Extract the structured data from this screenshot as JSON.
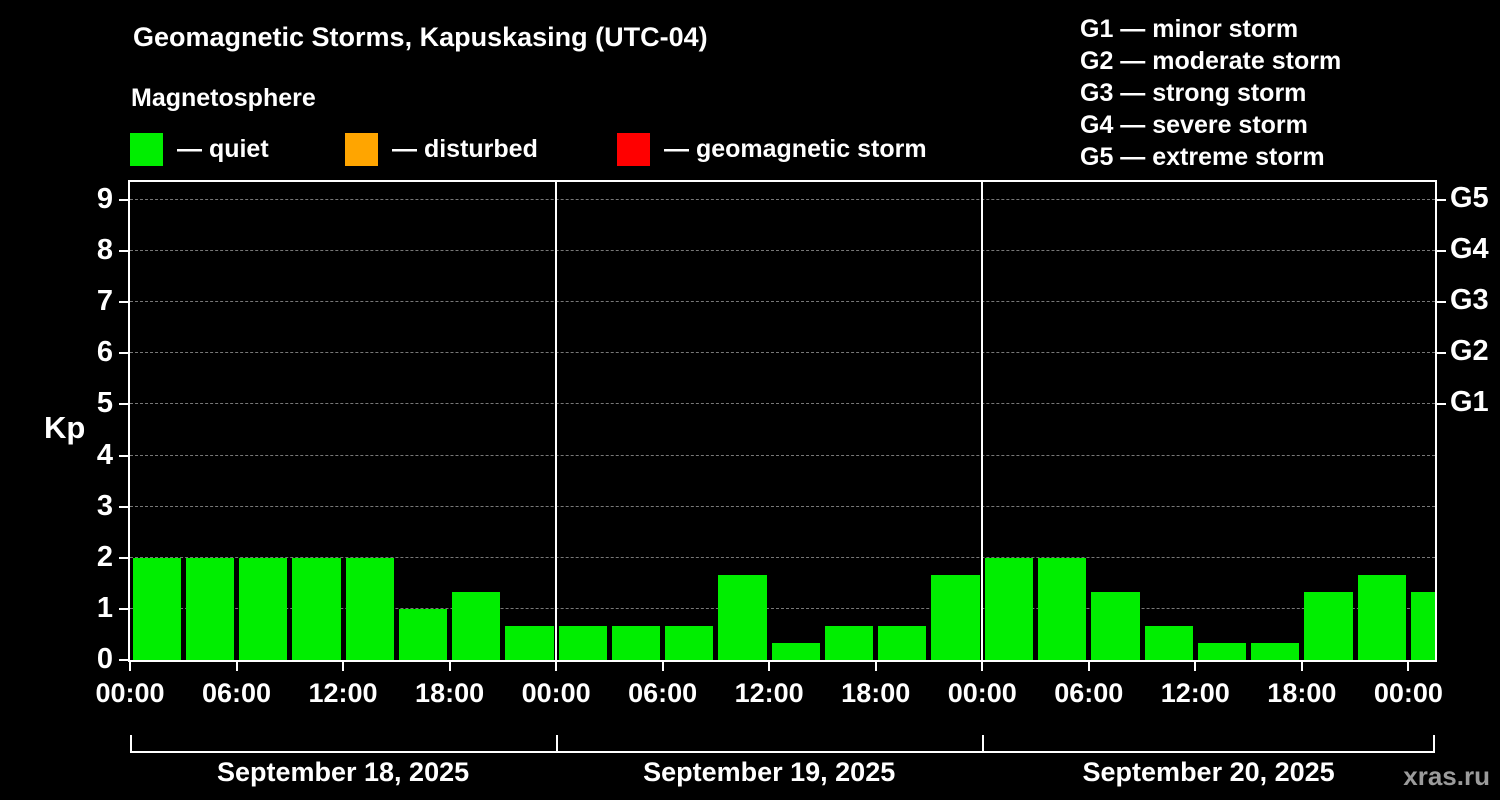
{
  "title": "Geomagnetic Storms, Kapuskasing (UTC-04)",
  "subtitle": "Magnetosphere",
  "legend": [
    {
      "name": "quiet",
      "label": "— quiet",
      "color": "#00ee00"
    },
    {
      "name": "disturbed",
      "label": "— disturbed",
      "color": "#ffa500"
    },
    {
      "name": "storm",
      "label": "— geomagnetic storm",
      "color": "#ff0000"
    }
  ],
  "g_scale_legend": [
    "G1 — minor storm",
    "G2 — moderate storm",
    "G3 — strong storm",
    "G4 — severe storm",
    "G5 — extreme storm"
  ],
  "watermark": "xras.ru",
  "chart_data": {
    "type": "bar",
    "title": "Geomagnetic Storms, Kapuskasing (UTC-04)",
    "ylabel": "Kp",
    "ylim": [
      0,
      9.35
    ],
    "yticks_left": [
      0,
      1,
      2,
      3,
      4,
      5,
      6,
      7,
      8,
      9
    ],
    "yticks_right": [
      {
        "kp": 5,
        "label": "G1"
      },
      {
        "kp": 6,
        "label": "G2"
      },
      {
        "kp": 7,
        "label": "G3"
      },
      {
        "kp": 8,
        "label": "G4"
      },
      {
        "kp": 9,
        "label": "G5"
      }
    ],
    "grid": "dashed-horizontal",
    "bar_interval_hours": 3,
    "x_tick_labels": [
      "00:00",
      "06:00",
      "12:00",
      "18:00",
      "00:00",
      "06:00",
      "12:00",
      "18:00",
      "00:00",
      "06:00",
      "12:00",
      "18:00",
      "00:00"
    ],
    "days": [
      {
        "date": "September 18, 2025",
        "kp_values": [
          2,
          2,
          2,
          2,
          2,
          1,
          1.33,
          0.67
        ]
      },
      {
        "date": "September 19, 2025",
        "kp_values": [
          0.67,
          0.67,
          0.67,
          1.67,
          0.33,
          0.67,
          0.67,
          1.67
        ]
      },
      {
        "date": "September 20, 2025",
        "kp_values": [
          2,
          2,
          1.33,
          0.67,
          0.33,
          0.33,
          1.33,
          1.67
        ]
      }
    ],
    "clipped_last_bar_kp": 1.33,
    "color_rules": {
      "quiet_below_kp": 4,
      "disturbed_below_kp": 5,
      "storm_from_kp": 5
    }
  }
}
